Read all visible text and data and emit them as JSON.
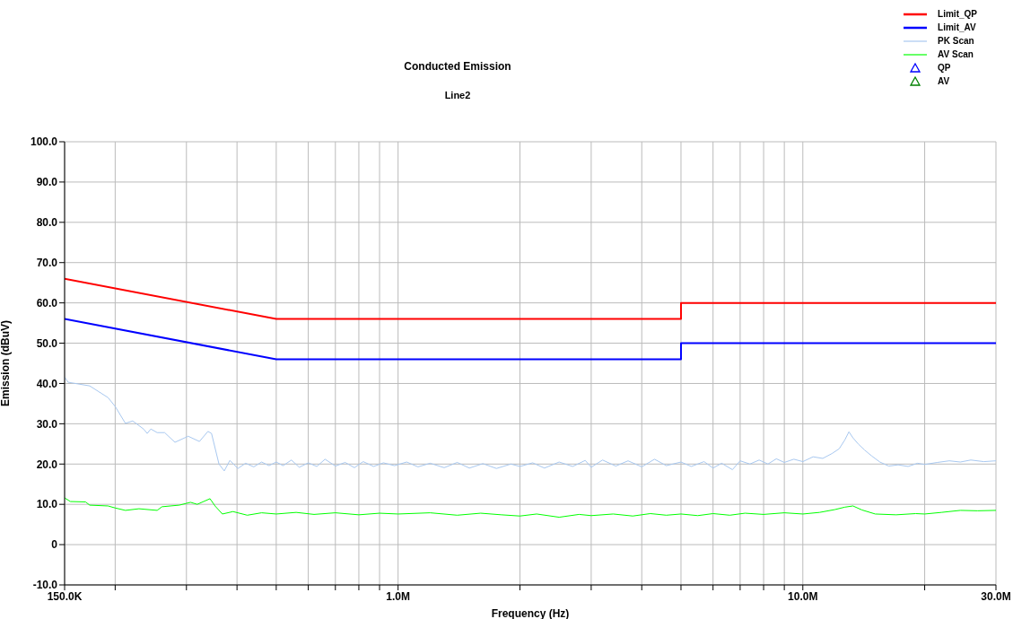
{
  "chart_data": {
    "type": "line",
    "title": "Conducted Emission",
    "subtitle": "Line2",
    "xlabel": "Frequency (Hz)",
    "ylabel": "Emission (dBuV)",
    "log": "x",
    "grid": true,
    "legend": "top right",
    "marker": "none",
    "xlim": [
      150000,
      30000000
    ],
    "xticks": [
      {
        "value": 150000,
        "label": "150.0K"
      },
      {
        "value": 200000,
        "label": null
      },
      {
        "value": 300000,
        "label": null
      },
      {
        "value": 400000,
        "label": null
      },
      {
        "value": 500000,
        "label": null
      },
      {
        "value": 600000,
        "label": null
      },
      {
        "value": 700000,
        "label": null
      },
      {
        "value": 800000,
        "label": null
      },
      {
        "value": 900000,
        "label": null
      },
      {
        "value": 1000000,
        "label": "1.0M"
      },
      {
        "value": 2000000,
        "label": null
      },
      {
        "value": 3000000,
        "label": null
      },
      {
        "value": 4000000,
        "label": null
      },
      {
        "value": 5000000,
        "label": null
      },
      {
        "value": 6000000,
        "label": null
      },
      {
        "value": 7000000,
        "label": null
      },
      {
        "value": 8000000,
        "label": null
      },
      {
        "value": 9000000,
        "label": null
      },
      {
        "value": 10000000,
        "label": "10.0M"
      },
      {
        "value": 20000000,
        "label": null
      },
      {
        "value": 30000000,
        "label": "30.0M"
      }
    ],
    "ylim": [
      -10,
      100
    ],
    "yticks": [
      {
        "value": -10,
        "label": "-10.0"
      },
      {
        "value": 0,
        "label": "0"
      },
      {
        "value": 10,
        "label": "10.0"
      },
      {
        "value": 20,
        "label": "20.0"
      },
      {
        "value": 30,
        "label": "30.0"
      },
      {
        "value": 40,
        "label": "40.0"
      },
      {
        "value": 50,
        "label": "50.0"
      },
      {
        "value": 60,
        "label": "60.0"
      },
      {
        "value": 70,
        "label": "70.0"
      },
      {
        "value": 80,
        "label": "80.0"
      },
      {
        "value": 90,
        "label": "90.0"
      },
      {
        "value": 100,
        "label": "100.0"
      }
    ],
    "series": [
      {
        "name": "Limit_QP",
        "type": "line",
        "color": "#ff0000",
        "x": [
          150000,
          500000,
          5000000,
          5000000,
          30000000
        ],
        "values": [
          66,
          56,
          56,
          60,
          60
        ]
      },
      {
        "name": "Limit_AV",
        "type": "line",
        "color": "#0000ff",
        "x": [
          150000,
          500000,
          5000000,
          5000000,
          30000000
        ],
        "values": [
          56,
          46,
          46,
          50,
          50
        ]
      },
      {
        "name": "PK Scan",
        "type": "line",
        "color": "#a8c8f0",
        "x": [
          150000,
          153000,
          173000,
          192000,
          200000,
          212000,
          221000,
          235000,
          240000,
          245000,
          254000,
          265000,
          281000,
          303000,
          323000,
          339000,
          346000,
          361000,
          372000,
          384000,
          402000,
          420000,
          440000,
          460000,
          480000,
          500000,
          520000,
          545000,
          570000,
          600000,
          630000,
          660000,
          700000,
          740000,
          780000,
          820000,
          870000,
          920000,
          980000,
          1050000,
          1120000,
          1200000,
          1300000,
          1400000,
          1500000,
          1620000,
          1750000,
          1900000,
          2000000,
          2150000,
          2300000,
          2500000,
          2700000,
          2900000,
          3000000,
          3200000,
          3450000,
          3700000,
          4000000,
          4300000,
          4600000,
          5000000,
          5300000,
          5700000,
          6000000,
          6300000,
          6700000,
          7000000,
          7400000,
          7800000,
          8200000,
          8600000,
          9000000,
          9500000,
          10000000,
          10600000,
          11200000,
          11800000,
          12300000,
          12700000,
          13000000,
          13300000,
          13700000,
          14200000,
          14800000,
          15500000,
          16300000,
          17200000,
          18200000,
          19200000,
          20000000,
          21500000,
          23000000,
          24500000,
          26000000,
          28000000,
          30000000
        ],
        "values": [
          41.6,
          40.3,
          39.4,
          36.5,
          34.3,
          30.1,
          30.7,
          28.7,
          27.6,
          28.7,
          27.8,
          27.8,
          25.4,
          26.9,
          25.6,
          28.1,
          27.6,
          20.0,
          18.3,
          20.9,
          18.9,
          20.2,
          19.3,
          20.5,
          19.6,
          20.5,
          19.6,
          21.0,
          19.2,
          20.3,
          19.4,
          21.2,
          19.5,
          20.4,
          19.1,
          20.6,
          19.4,
          20.3,
          19.6,
          20.5,
          19.3,
          20.2,
          19.1,
          20.4,
          19.0,
          20.1,
          18.9,
          20.0,
          19.4,
          20.3,
          19.0,
          20.5,
          19.4,
          20.9,
          19.2,
          21.0,
          19.5,
          20.8,
          19.3,
          21.2,
          19.6,
          20.5,
          19.4,
          20.6,
          19.0,
          20.2,
          18.6,
          20.8,
          20.0,
          21.0,
          20.0,
          21.3,
          20.4,
          21.2,
          20.6,
          21.8,
          21.4,
          22.6,
          23.8,
          26.0,
          28.0,
          26.5,
          25.0,
          23.5,
          22.0,
          20.5,
          19.5,
          19.8,
          19.4,
          20.2,
          19.9,
          20.4,
          20.8,
          20.5,
          21.0,
          20.6,
          20.8
        ]
      },
      {
        "name": "AV Scan",
        "type": "line",
        "color": "#00ff00",
        "x": [
          150000,
          155000,
          169000,
          173000,
          192000,
          200000,
          212000,
          229000,
          254000,
          261000,
          274000,
          288000,
          307000,
          319000,
          343000,
          353000,
          368000,
          391000,
          424000,
          460000,
          500000,
          560000,
          620000,
          700000,
          800000,
          900000,
          1000000,
          1200000,
          1400000,
          1600000,
          1800000,
          2000000,
          2200000,
          2500000,
          2800000,
          3000000,
          3400000,
          3800000,
          4200000,
          4600000,
          5000000,
          5500000,
          6000000,
          6600000,
          7200000,
          8000000,
          9000000,
          10000000,
          11000000,
          12000000,
          12700000,
          13300000,
          14000000,
          15100000,
          17000000,
          19000000,
          20000000,
          22000000,
          24500000,
          27000000,
          30000000
        ],
        "values": [
          11.6,
          10.7,
          10.6,
          9.8,
          9.6,
          9.1,
          8.5,
          8.9,
          8.5,
          9.4,
          9.6,
          9.8,
          10.5,
          10.0,
          11.4,
          9.6,
          7.6,
          8.2,
          7.3,
          7.9,
          7.6,
          8.0,
          7.5,
          7.9,
          7.4,
          7.8,
          7.6,
          7.9,
          7.3,
          7.8,
          7.4,
          7.1,
          7.6,
          6.8,
          7.5,
          7.2,
          7.6,
          7.1,
          7.7,
          7.3,
          7.6,
          7.2,
          7.7,
          7.3,
          7.8,
          7.5,
          7.9,
          7.6,
          8.0,
          8.7,
          9.3,
          9.6,
          8.6,
          7.6,
          7.4,
          7.7,
          7.6,
          8.0,
          8.5,
          8.4,
          8.5
        ]
      },
      {
        "name": "QP",
        "type": "scatter",
        "color": "#0000ff",
        "marker": "triangle"
      },
      {
        "name": "AV",
        "type": "scatter",
        "color": "#008000",
        "marker": "triangle"
      }
    ]
  }
}
